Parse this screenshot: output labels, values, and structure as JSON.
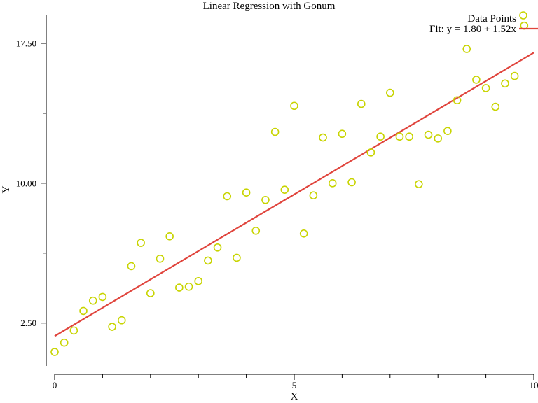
{
  "chart_data": {
    "type": "scatter",
    "title": "Linear Regression with Gonum",
    "xlabel": "X",
    "ylabel": "Y",
    "xlim": [
      0,
      10
    ],
    "ylim": [
      -0.25,
      19
    ],
    "x_ticks": [
      {
        "value": 0,
        "label": "0"
      },
      {
        "value": 5,
        "label": "5"
      },
      {
        "value": 10,
        "label": "10"
      }
    ],
    "x_minor_ticks": [
      1,
      2,
      3,
      4,
      6,
      7,
      8,
      9
    ],
    "y_ticks": [
      {
        "value": 2.5,
        "label": "2.50"
      },
      {
        "value": 10,
        "label": "10.00"
      },
      {
        "value": 17.5,
        "label": "17.50"
      }
    ],
    "y_minor_ticks": [
      6.25,
      13.75
    ],
    "grid": false,
    "legend_position": "top-right",
    "series": [
      {
        "name": "Data Points",
        "kind": "scatter",
        "color": "#c8d400",
        "x": [
          0.0,
          0.2,
          0.4,
          0.6,
          0.8,
          1.0,
          1.2,
          1.4,
          1.6,
          1.8,
          2.0,
          2.2,
          2.4,
          2.6,
          2.8,
          3.0,
          3.2,
          3.4,
          3.6,
          3.8,
          4.0,
          4.2,
          4.4,
          4.6,
          4.8,
          5.0,
          5.2,
          5.4,
          5.6,
          5.8,
          6.0,
          6.2,
          6.4,
          6.6,
          6.8,
          7.0,
          7.2,
          7.4,
          7.6,
          7.8,
          8.0,
          8.2,
          8.4,
          8.6,
          8.8,
          9.0,
          9.2,
          9.4,
          9.6,
          9.8
        ],
        "y": [
          0.95,
          1.45,
          2.1,
          3.15,
          3.7,
          3.9,
          2.3,
          2.65,
          5.55,
          6.8,
          4.1,
          5.95,
          7.15,
          4.4,
          4.45,
          4.75,
          5.85,
          6.55,
          9.3,
          6.0,
          9.5,
          7.45,
          9.1,
          12.75,
          9.65,
          14.15,
          7.3,
          9.35,
          12.45,
          10.0,
          12.65,
          10.05,
          14.25,
          11.65,
          12.5,
          14.85,
          12.5,
          12.5,
          9.95,
          12.6,
          12.4,
          12.8,
          14.45,
          17.2,
          15.55,
          15.1,
          14.1,
          15.35,
          15.75,
          18.45
        ]
      },
      {
        "name": "Fit: y = 1.80 + 1.52x",
        "kind": "line",
        "color": "#e0443c",
        "intercept": 1.8,
        "slope": 1.52
      }
    ]
  }
}
